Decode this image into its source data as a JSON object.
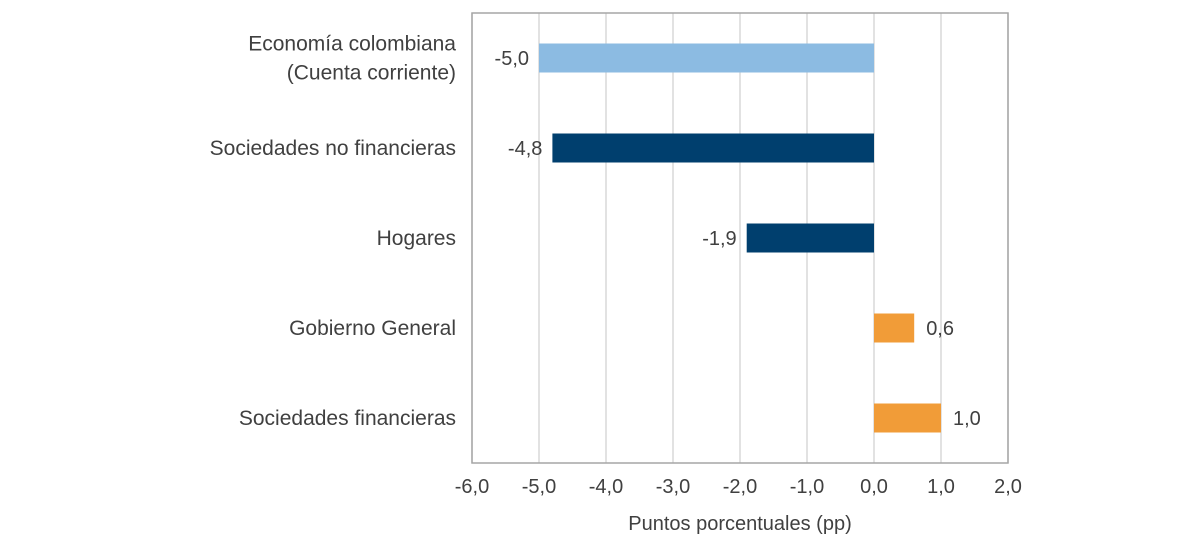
{
  "chart_data": {
    "type": "bar",
    "orientation": "horizontal",
    "title": "",
    "xlabel": "Puntos porcentuales (pp)",
    "ylabel": "",
    "xlim": [
      -6.0,
      2.0
    ],
    "xticks": [
      -6.0,
      -5.0,
      -4.0,
      -3.0,
      -2.0,
      -1.0,
      0.0,
      1.0,
      2.0
    ],
    "xtick_labels": [
      "-6,0",
      "-5,0",
      "-4,0",
      "-3,0",
      "-2,0",
      "-1,0",
      "0,0",
      "1,0",
      "2,0"
    ],
    "grid": true,
    "legend": "none",
    "categories": [
      [
        "Economía colombiana",
        "(Cuenta corriente)"
      ],
      [
        "Sociedades no financieras"
      ],
      [
        "Hogares"
      ],
      [
        "Gobierno General"
      ],
      [
        "Sociedades financieras"
      ]
    ],
    "values": [
      -5.0,
      -4.8,
      -1.9,
      0.6,
      1.0
    ],
    "value_labels": [
      "-5,0",
      "-4,8",
      "-1,9",
      "0,6",
      "1,0"
    ],
    "colors": [
      "#8cbbe2",
      "#003f6e",
      "#003f6e",
      "#f19c38",
      "#f19c38"
    ]
  }
}
